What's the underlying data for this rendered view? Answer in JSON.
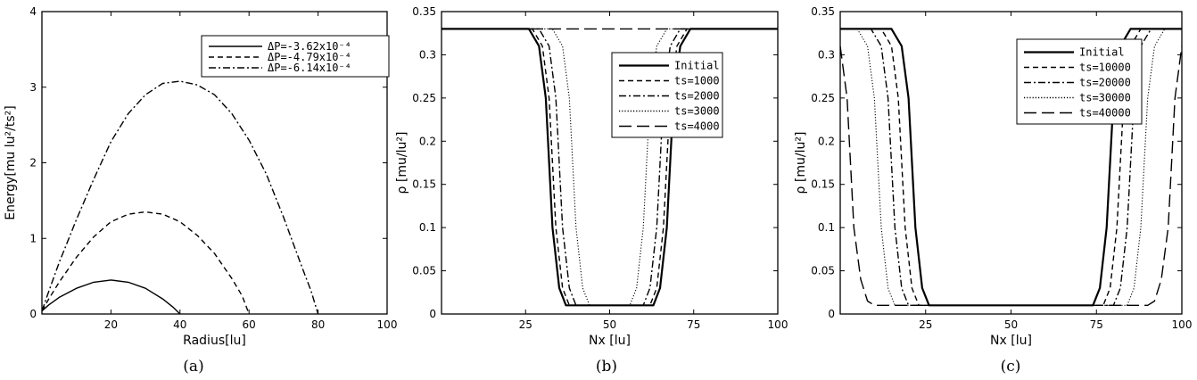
{
  "chart_data": [
    {
      "panel": "(a)",
      "type": "line",
      "xlabel": "Radius[lu]",
      "ylabel": "Energy[mu lu²/ts²]",
      "xlim": [
        0,
        100
      ],
      "ylim": [
        0,
        4
      ],
      "xticks": [
        20,
        40,
        60,
        80,
        100
      ],
      "yticks": [
        0,
        1,
        2,
        3,
        4
      ],
      "legend_position": "top-right",
      "series": [
        {
          "name": "ΔP=-3.62x10⁻⁴",
          "style": "solid",
          "x": [
            0,
            2,
            5,
            10,
            15,
            20,
            25,
            30,
            35,
            38,
            40
          ],
          "y": [
            0.04,
            0.12,
            0.22,
            0.34,
            0.42,
            0.45,
            0.42,
            0.34,
            0.2,
            0.09,
            0.0
          ]
        },
        {
          "name": "ΔP=-4.79x10⁻⁴",
          "style": "dashed",
          "x": [
            0,
            2,
            5,
            10,
            15,
            20,
            25,
            30,
            35,
            40,
            45,
            50,
            55,
            58,
            60
          ],
          "y": [
            0.04,
            0.2,
            0.42,
            0.75,
            1.02,
            1.22,
            1.32,
            1.35,
            1.32,
            1.22,
            1.04,
            0.8,
            0.47,
            0.24,
            0.0
          ]
        },
        {
          "name": "ΔP=-6.14x10⁻⁴",
          "style": "dash-dot",
          "x": [
            0,
            2,
            5,
            10,
            15,
            20,
            25,
            30,
            35,
            40,
            45,
            50,
            55,
            60,
            65,
            70,
            75,
            78,
            80
          ],
          "y": [
            0.04,
            0.3,
            0.68,
            1.25,
            1.78,
            2.28,
            2.65,
            2.9,
            3.05,
            3.08,
            3.03,
            2.9,
            2.65,
            2.3,
            1.85,
            1.28,
            0.66,
            0.3,
            0.0
          ]
        }
      ],
      "caption": "(a)"
    },
    {
      "panel": "(b)",
      "type": "line",
      "xlabel": "Nx [lu]",
      "ylabel": "ρ [mu/lu²]",
      "xlim": [
        0,
        100
      ],
      "ylim": [
        0,
        0.35
      ],
      "xticks": [
        25,
        50,
        75,
        100
      ],
      "yticks": [
        0,
        0.05,
        0.1,
        0.15,
        0.2,
        0.25,
        0.3,
        0.35
      ],
      "legend_position": "right",
      "series": [
        {
          "name": "Initial",
          "style": "solid-bold",
          "x": [
            0,
            26,
            29,
            31,
            33,
            35,
            37,
            63,
            65,
            67,
            69,
            71,
            74,
            100
          ],
          "y": [
            0.33,
            0.33,
            0.31,
            0.25,
            0.1,
            0.03,
            0.01,
            0.01,
            0.03,
            0.1,
            0.25,
            0.31,
            0.33,
            0.33
          ]
        },
        {
          "name": "ts=1000",
          "style": "dashed",
          "x": [
            0,
            27,
            30,
            32,
            34,
            36,
            38,
            62,
            64,
            66,
            68,
            70,
            73,
            100
          ],
          "y": [
            0.33,
            0.33,
            0.31,
            0.25,
            0.1,
            0.03,
            0.01,
            0.01,
            0.03,
            0.1,
            0.25,
            0.31,
            0.33,
            0.33
          ]
        },
        {
          "name": "ts=2000",
          "style": "dash-dot",
          "x": [
            0,
            29,
            32,
            34,
            36,
            38,
            40,
            60,
            62,
            64,
            66,
            68,
            71,
            100
          ],
          "y": [
            0.33,
            0.33,
            0.31,
            0.25,
            0.1,
            0.03,
            0.01,
            0.01,
            0.03,
            0.1,
            0.25,
            0.31,
            0.33,
            0.33
          ]
        },
        {
          "name": "ts=3000",
          "style": "dotted",
          "x": [
            0,
            33,
            36,
            38,
            40,
            42,
            44,
            56,
            58,
            60,
            62,
            64,
            67,
            100
          ],
          "y": [
            0.33,
            0.33,
            0.31,
            0.25,
            0.1,
            0.03,
            0.01,
            0.01,
            0.03,
            0.1,
            0.25,
            0.31,
            0.33,
            0.33
          ]
        },
        {
          "name": "ts=4000",
          "style": "long-dash",
          "x": [
            0,
            100
          ],
          "y": [
            0.33,
            0.33
          ]
        }
      ],
      "caption": "(b)"
    },
    {
      "panel": "(c)",
      "type": "line",
      "xlabel": "Nx [lu]",
      "ylabel": "ρ [mu/lu²]",
      "xlim": [
        0,
        100
      ],
      "ylim": [
        0,
        0.35
      ],
      "xticks": [
        25,
        50,
        75,
        100
      ],
      "yticks": [
        0,
        0.05,
        0.1,
        0.15,
        0.2,
        0.25,
        0.3,
        0.35
      ],
      "legend_position": "top-right",
      "series": [
        {
          "name": "Initial",
          "style": "solid-bold",
          "x": [
            0,
            15,
            18,
            20,
            22,
            24,
            26,
            74,
            76,
            78,
            80,
            82,
            85,
            100
          ],
          "y": [
            0.33,
            0.33,
            0.31,
            0.25,
            0.1,
            0.03,
            0.01,
            0.01,
            0.03,
            0.1,
            0.25,
            0.31,
            0.33,
            0.33
          ]
        },
        {
          "name": "ts=10000",
          "style": "dashed",
          "x": [
            0,
            12,
            15,
            17,
            19,
            21,
            23,
            77,
            79,
            81,
            83,
            85,
            88,
            100
          ],
          "y": [
            0.33,
            0.33,
            0.31,
            0.25,
            0.1,
            0.03,
            0.01,
            0.01,
            0.03,
            0.1,
            0.25,
            0.31,
            0.33,
            0.33
          ]
        },
        {
          "name": "ts=20000",
          "style": "dash-dot",
          "x": [
            0,
            9,
            12,
            14,
            16,
            18,
            20,
            80,
            82,
            84,
            86,
            88,
            91,
            100
          ],
          "y": [
            0.33,
            0.33,
            0.31,
            0.25,
            0.1,
            0.03,
            0.01,
            0.01,
            0.03,
            0.1,
            0.25,
            0.31,
            0.33,
            0.33
          ]
        },
        {
          "name": "ts=30000",
          "style": "dotted",
          "x": [
            0,
            5,
            8,
            10,
            12,
            14,
            16,
            84,
            86,
            88,
            90,
            92,
            95,
            100
          ],
          "y": [
            0.33,
            0.33,
            0.31,
            0.25,
            0.1,
            0.03,
            0.01,
            0.01,
            0.03,
            0.1,
            0.25,
            0.31,
            0.33,
            0.33
          ]
        },
        {
          "name": "ts=40000",
          "style": "long-dash",
          "x": [
            0,
            2,
            4,
            6,
            8,
            10,
            90,
            92,
            94,
            96,
            98,
            100
          ],
          "y": [
            0.31,
            0.25,
            0.1,
            0.04,
            0.015,
            0.01,
            0.01,
            0.015,
            0.04,
            0.1,
            0.25,
            0.31
          ]
        }
      ],
      "caption": "(c)"
    }
  ]
}
